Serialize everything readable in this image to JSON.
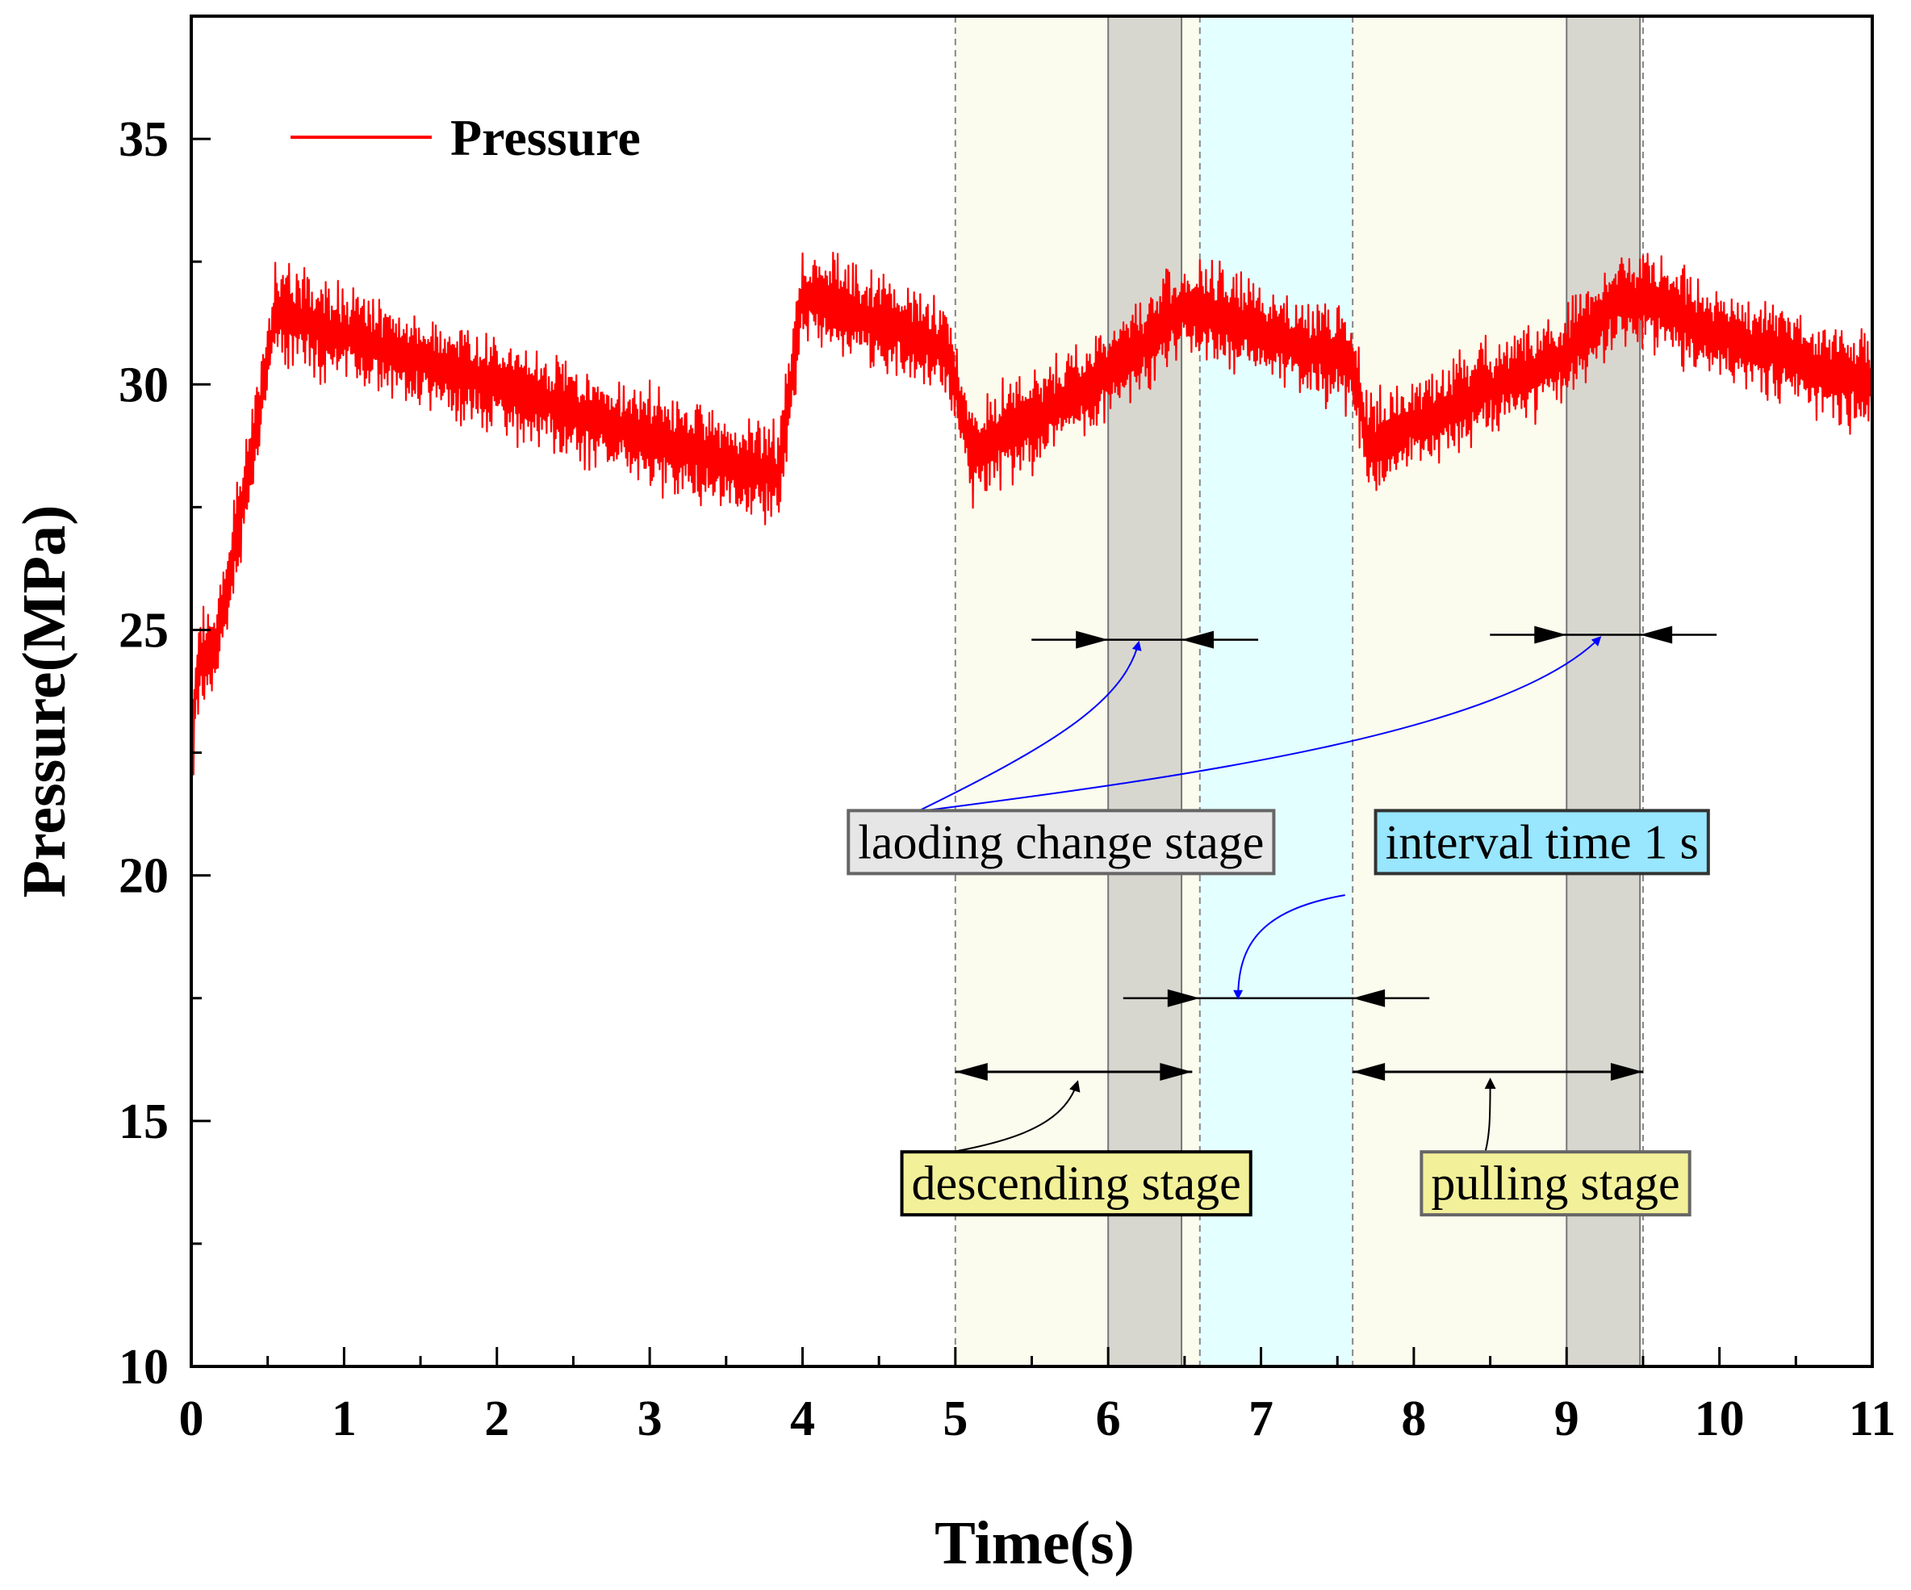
{
  "chart_data": {
    "type": "line",
    "xlabel": "Time(s)",
    "ylabel": "Pressure(MPa)",
    "xlim": [
      0,
      11
    ],
    "ylim": [
      10,
      37.5
    ],
    "x_ticks": [
      0,
      1,
      2,
      3,
      4,
      5,
      6,
      7,
      8,
      9,
      10,
      11
    ],
    "y_ticks": [
      10,
      15,
      20,
      25,
      30,
      35
    ],
    "grid": false,
    "legend_position": "top-left",
    "series": [
      {
        "name": "Pressure",
        "color": "#ff0000",
        "noise_amplitude": 1.2,
        "keypoints": [
          [
            0,
            22.5
          ],
          [
            0.05,
            24.5
          ],
          [
            0.15,
            24.5
          ],
          [
            0.3,
            27.0
          ],
          [
            0.45,
            29.5
          ],
          [
            0.55,
            31.5
          ],
          [
            1.0,
            31.0
          ],
          [
            2.0,
            30.0
          ],
          [
            3.0,
            28.9
          ],
          [
            3.85,
            28.1
          ],
          [
            3.9,
            29.5
          ],
          [
            4.0,
            31.8
          ],
          [
            4.5,
            31.3
          ],
          [
            4.95,
            30.7
          ],
          [
            5.1,
            28.6
          ],
          [
            5.5,
            29.3
          ],
          [
            6.0,
            30.2
          ],
          [
            6.3,
            31.0
          ],
          [
            6.5,
            31.6
          ],
          [
            7.0,
            31.1
          ],
          [
            7.6,
            30.4
          ],
          [
            7.7,
            28.7
          ],
          [
            8.0,
            29.2
          ],
          [
            8.5,
            29.9
          ],
          [
            9.0,
            30.6
          ],
          [
            9.3,
            31.6
          ],
          [
            9.5,
            31.8
          ],
          [
            10.0,
            31.0
          ],
          [
            11.0,
            30.0
          ]
        ]
      }
    ],
    "shaded_regions": [
      {
        "stage": "descending",
        "x": [
          5.0,
          6.0
        ],
        "color": "#fbfbee"
      },
      {
        "stage": "loading",
        "x": [
          6.0,
          6.48
        ],
        "color": "#d7d7d0"
      },
      {
        "stage": "transition",
        "x": [
          6.48,
          6.6
        ],
        "color": "#fbfbee"
      },
      {
        "stage": "interval",
        "x": [
          6.6,
          7.6
        ],
        "color": "#e3ffff"
      },
      {
        "stage": "pulling",
        "x": [
          7.6,
          9.0
        ],
        "color": "#fbfbee"
      },
      {
        "stage": "loading",
        "x": [
          9.0,
          9.48
        ],
        "color": "#d7d7d0"
      }
    ],
    "dashed_lines_x": [
      5.0,
      6.6,
      7.6,
      9.5
    ],
    "measure_arrows": [
      {
        "type": "inward",
        "x": [
          6.0,
          6.48
        ],
        "y": 24.8,
        "color": "#000000"
      },
      {
        "type": "inward",
        "x": [
          9.0,
          9.48
        ],
        "y": 24.9,
        "color": "#000000"
      },
      {
        "type": "inward",
        "x": [
          6.6,
          7.6
        ],
        "y": 17.5,
        "color": "#000000"
      },
      {
        "type": "outward",
        "x": [
          5.0,
          6.55
        ],
        "y": 16.0,
        "color": "#000000"
      },
      {
        "type": "outward",
        "x": [
          7.6,
          9.5
        ],
        "y": 16.0,
        "color": "#000000"
      }
    ],
    "annotations": [
      {
        "text": "laoding change stage",
        "x": 4.3,
        "y": 20.35,
        "bg": "#e6e6e6",
        "border": "#666666"
      },
      {
        "text": "interval time 1 s",
        "x": 7.75,
        "y": 20.35,
        "bg": "#99e6ff",
        "border": "#333333"
      },
      {
        "text": "descending stage",
        "x": 4.65,
        "y": 13.4,
        "bg": "#f2f099",
        "border": "#000000"
      },
      {
        "text": "pulling stage",
        "x": 8.05,
        "y": 13.4,
        "bg": "#f2f099",
        "border": "#666666"
      }
    ],
    "leader_colors": {
      "loading": "#0000ff",
      "interval": "#0000ff",
      "stage": "#000000"
    }
  }
}
